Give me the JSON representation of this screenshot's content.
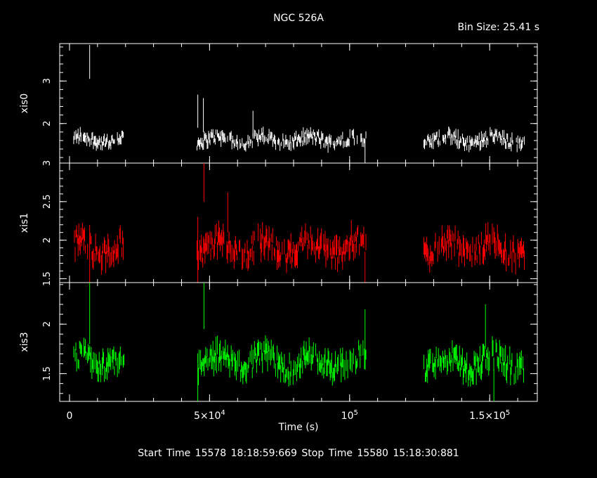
{
  "title": "NGC 526A",
  "bin_size_label": "Bin Size:  25.41  s",
  "xlabel": "Time (s)",
  "footer": "Start Time  15578  18:18:59:669     Stop Time  15580  15:18:30:881",
  "chart_data": {
    "type": "scatter",
    "xlim": [
      -3500,
      167000
    ],
    "x_ticks": [
      {
        "value": 0,
        "label": "0"
      },
      {
        "value": 50000,
        "label": "5×10^4"
      },
      {
        "value": 100000,
        "label": "10^5"
      },
      {
        "value": 150000,
        "label": "1.5×10^5"
      }
    ],
    "segments": [
      [
        1500,
        19500
      ],
      [
        45500,
        106000
      ],
      [
        126500,
        162500
      ]
    ],
    "panels": [
      {
        "name": "xis0",
        "color": "#ffffff",
        "ylim": [
          1.07,
          3.88
        ],
        "yticks": [
          2,
          3
        ],
        "ytick_labels": [
          "2",
          "3"
        ],
        "base_level": 1.62,
        "noise": 0.13,
        "spikes": [
          {
            "x": 7200,
            "hi": 3.85,
            "lo": 3.05
          },
          {
            "x": 45800,
            "hi": 2.68,
            "lo": 1.9
          },
          {
            "x": 47800,
            "hi": 2.6,
            "lo": 1.8
          },
          {
            "x": 65500,
            "hi": 2.3,
            "lo": 1.7
          },
          {
            "x": 105500,
            "hi": 1.65,
            "lo": 1.05
          }
        ]
      },
      {
        "name": "xis1",
        "color": "#ff0000",
        "ylim": [
          1.45,
          3.0
        ],
        "yticks": [
          1.5,
          2,
          2.5,
          3
        ],
        "ytick_labels": [
          "1.5",
          "2",
          "2.5",
          "3"
        ],
        "base_level": 1.9,
        "noise": 0.15,
        "spikes": [
          {
            "x": 45800,
            "hi": 2.3,
            "lo": 1.45
          },
          {
            "x": 48000,
            "hi": 3.0,
            "lo": 2.5
          },
          {
            "x": 56500,
            "hi": 2.62,
            "lo": 2.1
          },
          {
            "x": 105500,
            "hi": 1.85,
            "lo": 1.45
          },
          {
            "x": 7200,
            "hi": 2.2,
            "lo": 1.45
          }
        ]
      },
      {
        "name": "xis3",
        "color": "#00ff00",
        "ylim": [
          1.22,
          2.42
        ],
        "yticks": [
          1.5,
          2
        ],
        "ytick_labels": [
          "1.5",
          "2"
        ],
        "base_level": 1.62,
        "noise": 0.11,
        "spikes": [
          {
            "x": 7200,
            "hi": 2.42,
            "lo": 1.8
          },
          {
            "x": 45800,
            "hi": 1.6,
            "lo": 1.22
          },
          {
            "x": 48000,
            "hi": 2.42,
            "lo": 1.95
          },
          {
            "x": 105500,
            "hi": 2.15,
            "lo": 1.6
          },
          {
            "x": 148500,
            "hi": 2.2,
            "lo": 1.75
          },
          {
            "x": 151500,
            "hi": 1.55,
            "lo": 1.22
          }
        ]
      }
    ]
  }
}
